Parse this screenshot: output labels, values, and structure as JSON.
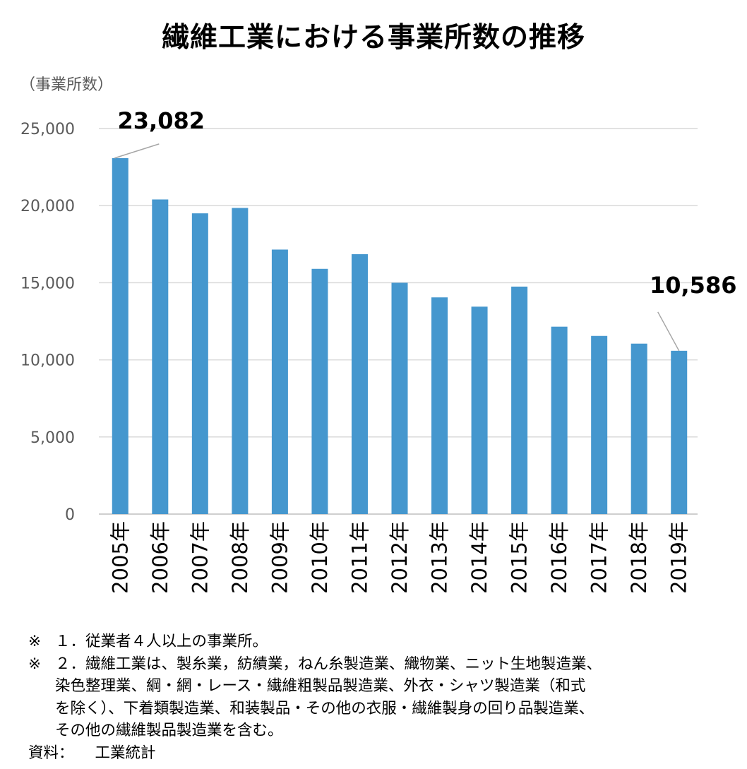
{
  "chart_data": {
    "type": "bar",
    "title": "繊維工業における事業所数の推移",
    "ylabel": "（事業所数）",
    "xlabel": "",
    "categories": [
      "2005年",
      "2006年",
      "2007年",
      "2008年",
      "2009年",
      "2010年",
      "2011年",
      "2012年",
      "2013年",
      "2014年",
      "2015年",
      "2016年",
      "2017年",
      "2018年",
      "2019年"
    ],
    "values": [
      23082,
      20400,
      19500,
      19850,
      17150,
      15900,
      16850,
      15000,
      14050,
      13450,
      14750,
      12150,
      11550,
      11050,
      10586
    ],
    "ylim": [
      0,
      25000
    ],
    "yticks": [
      0,
      5000,
      10000,
      15000,
      20000,
      25000
    ],
    "ytick_labels": [
      "0",
      "5,000",
      "10,000",
      "15,000",
      "20,000",
      "25,000"
    ],
    "grid": true,
    "bar_color": "#4597ce",
    "annotations": [
      {
        "category": "2005年",
        "text": "23,082"
      },
      {
        "category": "2019年",
        "text": "10,586"
      }
    ]
  },
  "notes": {
    "items": [
      {
        "mark": "※",
        "lines": [
          "１．従業者４人以上の事業所。"
        ]
      },
      {
        "mark": "※",
        "lines": [
          "２．繊維工業は、製糸業，紡績業，ねん糸製造業、織物業、ニット生地製造業、",
          "染色整理業、綱・網・レース・繊維粗製品製造業、外衣・シャツ製造業（和式",
          "を除く）、下着類製造業、和装製品・その他の衣服・繊維製身の回り品製造業、",
          "その他の繊維製品製造業を含む。"
        ]
      }
    ],
    "source_label": "資料：",
    "source_value": "工業統計"
  }
}
